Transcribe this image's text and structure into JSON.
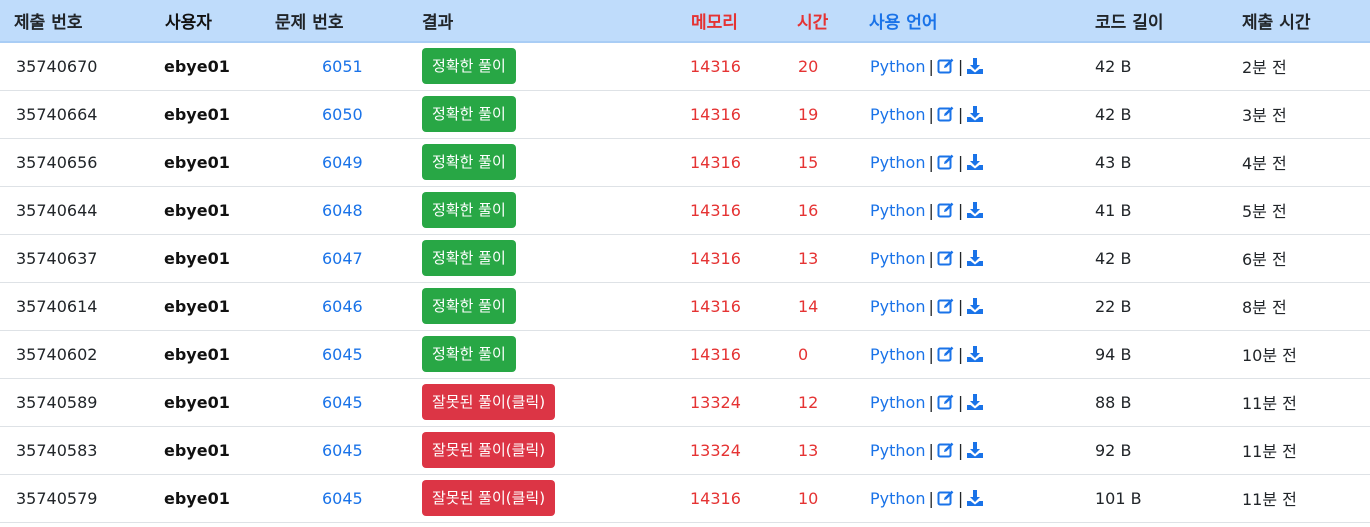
{
  "columns": {
    "id": "제출 번호",
    "user": "사용자",
    "problem": "문제 번호",
    "result": "결과",
    "memory": "메모리",
    "time": "시간",
    "language": "사용 언어",
    "code_length": "코드 길이",
    "submitted": "제출 시간"
  },
  "colors": {
    "header_bg": "#bfdcfb",
    "link": "#1a73e8",
    "accepted": "#28a745",
    "wrong": "#dc3545",
    "stat": "#e53333"
  },
  "icons": {
    "edit": "edit-icon",
    "download": "download-icon"
  },
  "separator": "|",
  "rows": [
    {
      "id": "35740670",
      "user": "ebye01",
      "problem": "6051",
      "result": "정확한 풀이",
      "status": "ok",
      "memory": "14316",
      "time": "20",
      "language": "Python",
      "code_length": "42 B",
      "submitted": "2분 전"
    },
    {
      "id": "35740664",
      "user": "ebye01",
      "problem": "6050",
      "result": "정확한 풀이",
      "status": "ok",
      "memory": "14316",
      "time": "19",
      "language": "Python",
      "code_length": "42 B",
      "submitted": "3분 전"
    },
    {
      "id": "35740656",
      "user": "ebye01",
      "problem": "6049",
      "result": "정확한 풀이",
      "status": "ok",
      "memory": "14316",
      "time": "15",
      "language": "Python",
      "code_length": "43 B",
      "submitted": "4분 전"
    },
    {
      "id": "35740644",
      "user": "ebye01",
      "problem": "6048",
      "result": "정확한 풀이",
      "status": "ok",
      "memory": "14316",
      "time": "16",
      "language": "Python",
      "code_length": "41 B",
      "submitted": "5분 전"
    },
    {
      "id": "35740637",
      "user": "ebye01",
      "problem": "6047",
      "result": "정확한 풀이",
      "status": "ok",
      "memory": "14316",
      "time": "13",
      "language": "Python",
      "code_length": "42 B",
      "submitted": "6분 전"
    },
    {
      "id": "35740614",
      "user": "ebye01",
      "problem": "6046",
      "result": "정확한 풀이",
      "status": "ok",
      "memory": "14316",
      "time": "14",
      "language": "Python",
      "code_length": "22 B",
      "submitted": "8분 전"
    },
    {
      "id": "35740602",
      "user": "ebye01",
      "problem": "6045",
      "result": "정확한 풀이",
      "status": "ok",
      "memory": "14316",
      "time": "0",
      "language": "Python",
      "code_length": "94 B",
      "submitted": "10분 전"
    },
    {
      "id": "35740589",
      "user": "ebye01",
      "problem": "6045",
      "result": "잘못된 풀이(클릭)",
      "status": "wrong",
      "memory": "13324",
      "time": "12",
      "language": "Python",
      "code_length": "88 B",
      "submitted": "11분 전"
    },
    {
      "id": "35740583",
      "user": "ebye01",
      "problem": "6045",
      "result": "잘못된 풀이(클릭)",
      "status": "wrong",
      "memory": "13324",
      "time": "13",
      "language": "Python",
      "code_length": "92 B",
      "submitted": "11분 전"
    },
    {
      "id": "35740579",
      "user": "ebye01",
      "problem": "6045",
      "result": "잘못된 풀이(클릭)",
      "status": "wrong",
      "memory": "14316",
      "time": "10",
      "language": "Python",
      "code_length": "101 B",
      "submitted": "11분 전"
    }
  ]
}
